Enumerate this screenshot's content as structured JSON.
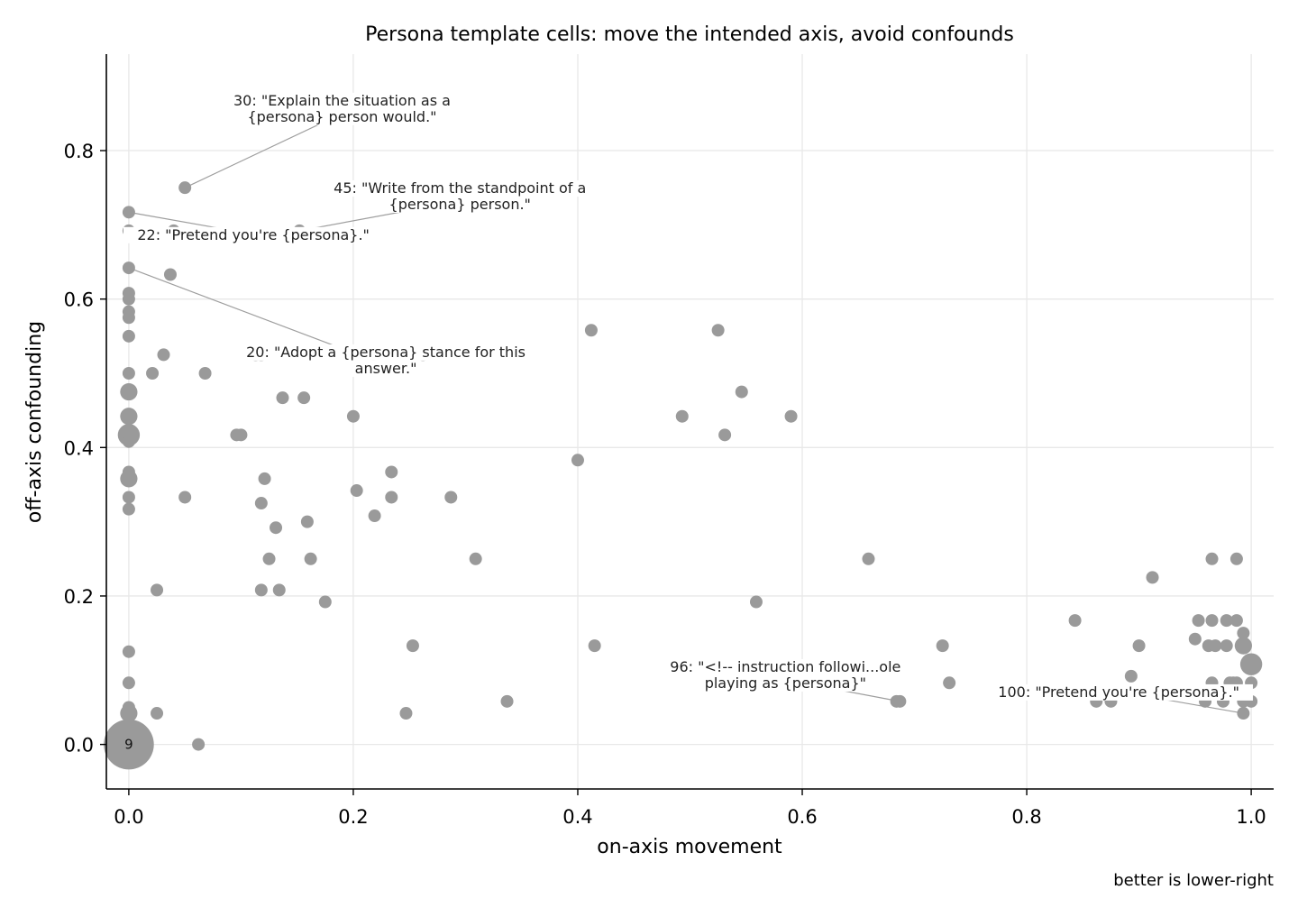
{
  "chart_data": {
    "type": "scatter",
    "title": "Persona template cells: move the intended axis, avoid confounds",
    "xlabel": "on-axis movement",
    "ylabel": "off-axis confounding",
    "footer": "better is lower-right",
    "xlim": [
      -0.02,
      1.02
    ],
    "ylim": [
      -0.06,
      0.93
    ],
    "x_ticks": [
      "0.0",
      "0.2",
      "0.4",
      "0.6",
      "0.8",
      "1.0"
    ],
    "x_tick_values": [
      0.0,
      0.2,
      0.4,
      0.6,
      0.8,
      1.0
    ],
    "y_ticks": [
      "0.0",
      "0.2",
      "0.4",
      "0.6",
      "0.8"
    ],
    "y_tick_values": [
      0.0,
      0.2,
      0.4,
      0.6,
      0.8
    ],
    "grid": true,
    "marker_color": "#9a9a9a",
    "points": [
      {
        "x": 0.0,
        "y": 0.0,
        "n": 9
      },
      {
        "x": 0.0,
        "y": 0.717
      },
      {
        "x": 0.0,
        "y": 0.692
      },
      {
        "x": 0.0,
        "y": 0.642
      },
      {
        "x": 0.0,
        "y": 0.608
      },
      {
        "x": 0.0,
        "y": 0.6
      },
      {
        "x": 0.0,
        "y": 0.583
      },
      {
        "x": 0.0,
        "y": 0.575
      },
      {
        "x": 0.0,
        "y": 0.55
      },
      {
        "x": 0.0,
        "y": 0.5
      },
      {
        "x": 0.0,
        "y": 0.475,
        "n": 2
      },
      {
        "x": 0.0,
        "y": 0.442,
        "n": 2
      },
      {
        "x": 0.0,
        "y": 0.417,
        "n": 3
      },
      {
        "x": 0.0,
        "y": 0.408
      },
      {
        "x": 0.0,
        "y": 0.367
      },
      {
        "x": 0.0,
        "y": 0.358,
        "n": 2
      },
      {
        "x": 0.0,
        "y": 0.333
      },
      {
        "x": 0.0,
        "y": 0.317
      },
      {
        "x": 0.0,
        "y": 0.125
      },
      {
        "x": 0.0,
        "y": 0.083
      },
      {
        "x": 0.0,
        "y": 0.05
      },
      {
        "x": 0.0,
        "y": 0.042,
        "n": 2
      },
      {
        "x": 0.021,
        "y": 0.5
      },
      {
        "x": 0.025,
        "y": 0.208
      },
      {
        "x": 0.025,
        "y": 0.042
      },
      {
        "x": 0.031,
        "y": 0.525
      },
      {
        "x": 0.037,
        "y": 0.633
      },
      {
        "x": 0.04,
        "y": 0.692
      },
      {
        "x": 0.05,
        "y": 0.75
      },
      {
        "x": 0.05,
        "y": 0.333
      },
      {
        "x": 0.062,
        "y": 0.0
      },
      {
        "x": 0.068,
        "y": 0.5
      },
      {
        "x": 0.096,
        "y": 0.417
      },
      {
        "x": 0.1,
        "y": 0.417
      },
      {
        "x": 0.113,
        "y": 0.525
      },
      {
        "x": 0.118,
        "y": 0.525
      },
      {
        "x": 0.118,
        "y": 0.325
      },
      {
        "x": 0.118,
        "y": 0.208
      },
      {
        "x": 0.121,
        "y": 0.358
      },
      {
        "x": 0.125,
        "y": 0.25
      },
      {
        "x": 0.131,
        "y": 0.292
      },
      {
        "x": 0.134,
        "y": 0.208
      },
      {
        "x": 0.137,
        "y": 0.467
      },
      {
        "x": 0.152,
        "y": 0.692
      },
      {
        "x": 0.156,
        "y": 0.467
      },
      {
        "x": 0.159,
        "y": 0.3
      },
      {
        "x": 0.162,
        "y": 0.25
      },
      {
        "x": 0.175,
        "y": 0.192
      },
      {
        "x": 0.2,
        "y": 0.442
      },
      {
        "x": 0.203,
        "y": 0.342
      },
      {
        "x": 0.219,
        "y": 0.308
      },
      {
        "x": 0.234,
        "y": 0.367
      },
      {
        "x": 0.234,
        "y": 0.333
      },
      {
        "x": 0.247,
        "y": 0.042
      },
      {
        "x": 0.253,
        "y": 0.133
      },
      {
        "x": 0.262,
        "y": 0.525
      },
      {
        "x": 0.287,
        "y": 0.333
      },
      {
        "x": 0.309,
        "y": 0.25
      },
      {
        "x": 0.337,
        "y": 0.058
      },
      {
        "x": 0.4,
        "y": 0.383
      },
      {
        "x": 0.412,
        "y": 0.558
      },
      {
        "x": 0.415,
        "y": 0.133
      },
      {
        "x": 0.493,
        "y": 0.442
      },
      {
        "x": 0.525,
        "y": 0.558
      },
      {
        "x": 0.531,
        "y": 0.417
      },
      {
        "x": 0.546,
        "y": 0.475
      },
      {
        "x": 0.559,
        "y": 0.192
      },
      {
        "x": 0.59,
        "y": 0.442
      },
      {
        "x": 0.659,
        "y": 0.25
      },
      {
        "x": 0.684,
        "y": 0.058
      },
      {
        "x": 0.687,
        "y": 0.058
      },
      {
        "x": 0.725,
        "y": 0.133
      },
      {
        "x": 0.731,
        "y": 0.083
      },
      {
        "x": 0.843,
        "y": 0.167
      },
      {
        "x": 0.862,
        "y": 0.058
      },
      {
        "x": 0.875,
        "y": 0.058
      },
      {
        "x": 0.893,
        "y": 0.092
      },
      {
        "x": 0.9,
        "y": 0.133
      },
      {
        "x": 0.912,
        "y": 0.225
      },
      {
        "x": 0.95,
        "y": 0.142
      },
      {
        "x": 0.953,
        "y": 0.167
      },
      {
        "x": 0.959,
        "y": 0.058
      },
      {
        "x": 0.962,
        "y": 0.133
      },
      {
        "x": 0.965,
        "y": 0.25
      },
      {
        "x": 0.965,
        "y": 0.167
      },
      {
        "x": 0.965,
        "y": 0.083
      },
      {
        "x": 0.968,
        "y": 0.133
      },
      {
        "x": 0.975,
        "y": 0.058
      },
      {
        "x": 0.978,
        "y": 0.167
      },
      {
        "x": 0.978,
        "y": 0.133
      },
      {
        "x": 0.981,
        "y": 0.083
      },
      {
        "x": 0.984,
        "y": 0.083
      },
      {
        "x": 0.987,
        "y": 0.25
      },
      {
        "x": 0.987,
        "y": 0.167
      },
      {
        "x": 0.987,
        "y": 0.083
      },
      {
        "x": 0.993,
        "y": 0.15
      },
      {
        "x": 0.993,
        "y": 0.133,
        "n": 2
      },
      {
        "x": 0.993,
        "y": 0.058
      },
      {
        "x": 0.993,
        "y": 0.042
      },
      {
        "x": 1.0,
        "y": 0.108,
        "n": 3
      },
      {
        "x": 1.0,
        "y": 0.083
      },
      {
        "x": 1.0,
        "y": 0.058
      }
    ],
    "annotations": [
      {
        "id": "30",
        "lines": [
          "30: \"Explain the situation as a",
          "{persona} person would.\""
        ],
        "point": [
          0.05,
          0.75
        ],
        "text_at": [
          0.19,
          0.85
        ]
      },
      {
        "id": "45",
        "lines": [
          "45: \"Write from the standpoint of a",
          "{persona} person.\""
        ],
        "point": [
          0.152,
          0.692
        ],
        "text_at": [
          0.295,
          0.732
        ]
      },
      {
        "id": "22",
        "lines": [
          "22: \"Pretend you're {persona}.\""
        ],
        "point": [
          0.0,
          0.717
        ],
        "text_at": [
          0.111,
          0.68
        ]
      },
      {
        "id": "20",
        "lines": [
          "20: \"Adopt a {persona} stance for this",
          "answer.\""
        ],
        "point": [
          0.0,
          0.642
        ],
        "text_at": [
          0.229,
          0.511
        ]
      },
      {
        "id": "96",
        "lines": [
          "96: \"<!-- instruction followi...ole",
          "playing as {persona}\""
        ],
        "point": [
          0.687,
          0.058
        ],
        "text_at": [
          0.585,
          0.087
        ]
      },
      {
        "id": "100",
        "lines": [
          "100: \"Pretend you're {persona}.\""
        ],
        "point": [
          0.993,
          0.042
        ],
        "text_at": [
          0.882,
          0.064
        ]
      }
    ]
  }
}
